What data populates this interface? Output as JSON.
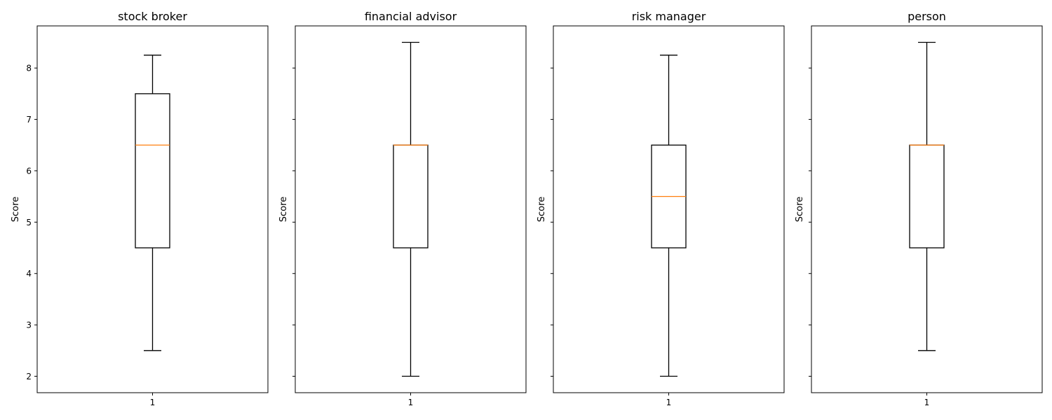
{
  "chart_data": [
    {
      "type": "box",
      "title": "stock broker",
      "ylabel": "Score",
      "categories": [
        "1"
      ],
      "ylim": [
        1.68,
        8.82
      ],
      "yticks": [
        2,
        3,
        4,
        5,
        6,
        7,
        8
      ],
      "ytick_labels_visible": true,
      "grid": false,
      "boxes": [
        {
          "whisker_low": 2.5,
          "q1": 4.5,
          "median": 6.5,
          "q3": 7.5,
          "whisker_high": 8.25
        }
      ]
    },
    {
      "type": "box",
      "title": "financial advisor",
      "ylabel": "Score",
      "categories": [
        "1"
      ],
      "ylim": [
        1.68,
        8.82
      ],
      "yticks": [
        2,
        3,
        4,
        5,
        6,
        7,
        8
      ],
      "ytick_labels_visible": false,
      "grid": false,
      "boxes": [
        {
          "whisker_low": 2.0,
          "q1": 4.5,
          "median": 6.5,
          "q3": 6.5,
          "whisker_high": 8.5
        }
      ]
    },
    {
      "type": "box",
      "title": "risk manager",
      "ylabel": "Score",
      "categories": [
        "1"
      ],
      "ylim": [
        1.68,
        8.82
      ],
      "yticks": [
        2,
        3,
        4,
        5,
        6,
        7,
        8
      ],
      "ytick_labels_visible": false,
      "grid": false,
      "boxes": [
        {
          "whisker_low": 2.0,
          "q1": 4.5,
          "median": 5.5,
          "q3": 6.5,
          "whisker_high": 8.25
        }
      ]
    },
    {
      "type": "box",
      "title": "person",
      "ylabel": "Score",
      "categories": [
        "1"
      ],
      "ylim": [
        1.68,
        8.82
      ],
      "yticks": [
        2,
        3,
        4,
        5,
        6,
        7,
        8
      ],
      "ytick_labels_visible": false,
      "grid": false,
      "boxes": [
        {
          "whisker_low": 2.5,
          "q1": 4.5,
          "median": 6.5,
          "q3": 6.5,
          "whisker_high": 8.5
        }
      ]
    }
  ],
  "colors": {
    "median": "#ff7f0e",
    "box": "#000000",
    "background": "#ffffff"
  }
}
